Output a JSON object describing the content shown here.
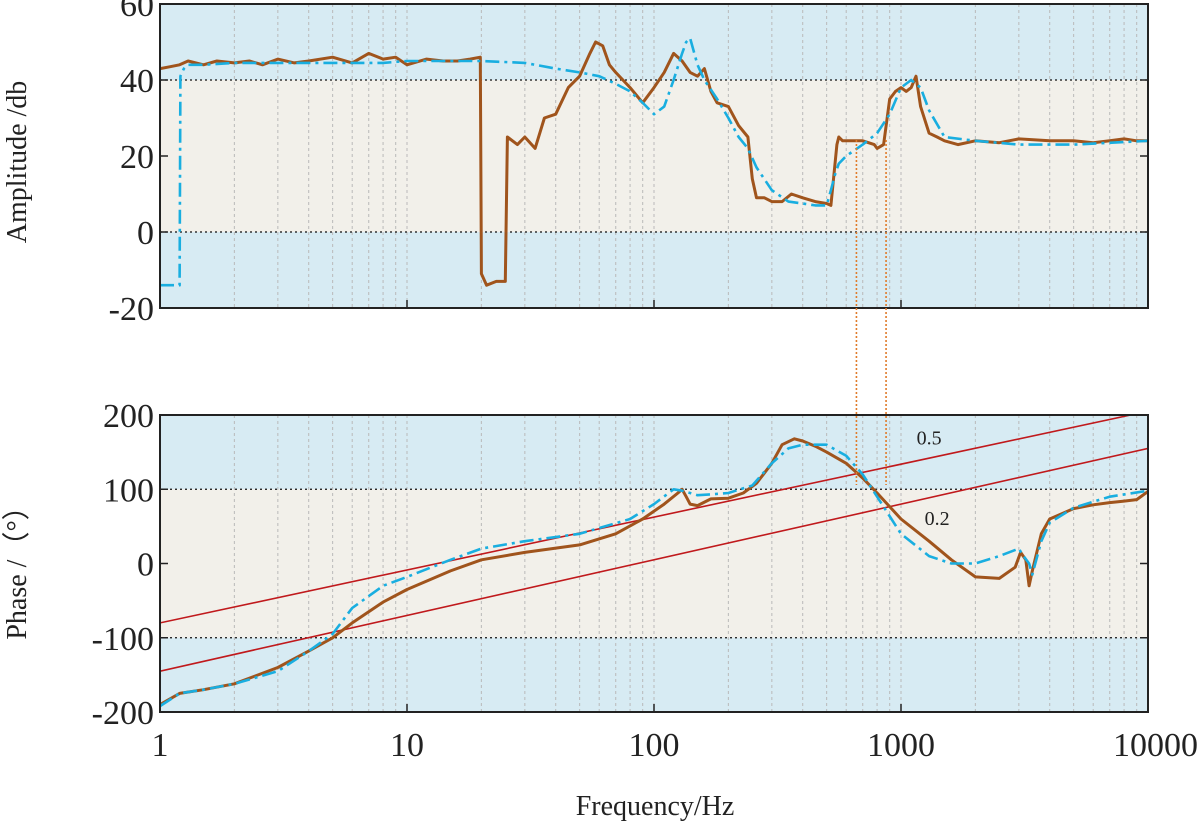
{
  "colors": {
    "band_blue": "#d7ebf3",
    "band_beige": "#f2f0ea",
    "measured": "#a0541c",
    "fitted": "#19aee0",
    "stability_line": "#c0191c",
    "guide": "#e07b2a"
  },
  "chart_data": [
    {
      "type": "line",
      "ylabel": "Amplitude /db",
      "xscale": "log",
      "xlim": [
        1,
        10000
      ],
      "ylim": [
        -20,
        60
      ],
      "ytick_labels": [
        "60",
        "40",
        "20",
        "0",
        "-20"
      ],
      "ytick_values": [
        60,
        40,
        20,
        0,
        -20
      ],
      "reference_lines": [
        40,
        0
      ],
      "series": [
        {
          "style": "solid",
          "color": "#a0541c",
          "x": [
            1,
            1.1,
            1.2,
            1.3,
            1.5,
            1.7,
            2,
            2.3,
            2.6,
            3,
            3.5,
            4,
            5,
            6,
            7,
            8,
            9,
            10,
            12,
            14,
            16,
            18,
            19.8,
            20,
            21,
            23,
            25,
            25.5,
            28,
            30,
            33,
            36,
            40,
            45,
            50,
            55,
            58,
            62,
            66,
            70,
            80,
            90,
            100,
            110,
            120,
            130,
            140,
            150,
            160,
            170,
            180,
            200,
            220,
            240,
            250,
            260,
            280,
            300,
            330,
            360,
            400,
            450,
            500,
            520,
            550,
            560,
            580,
            620,
            700,
            780,
            800,
            850,
            900,
            950,
            1000,
            1050,
            1100,
            1150,
            1200,
            1300,
            1400,
            1500,
            1700,
            2000,
            2500,
            3000,
            4000,
            5000,
            6000,
            7000,
            8000,
            9000,
            10000
          ],
          "y": [
            43,
            43.5,
            44,
            45,
            44,
            45,
            44.5,
            45,
            44,
            45.5,
            44.5,
            45,
            46,
            44.5,
            47,
            45.5,
            46,
            44,
            45.5,
            45,
            45,
            45.5,
            46,
            -11,
            -14,
            -13,
            -13,
            25,
            23,
            25,
            22,
            30,
            31,
            38,
            41,
            47,
            50,
            49,
            44,
            42,
            38,
            34,
            38,
            42,
            47,
            45,
            42,
            41,
            43,
            37,
            34,
            33,
            28,
            25,
            14,
            9,
            9,
            8,
            8,
            10,
            9,
            8,
            7.5,
            7,
            23,
            25,
            24,
            24,
            24,
            23,
            22,
            23,
            35,
            37,
            38,
            37,
            38,
            41,
            33,
            26,
            25,
            24,
            23,
            24,
            23.5,
            24.5,
            24,
            24,
            23.5,
            24,
            24.5,
            24,
            24
          ]
        },
        {
          "style": "dash-dot",
          "color": "#19aee0",
          "x": [
            1,
            1.15,
            1.2,
            1.21,
            1.25,
            1.3,
            1.5,
            2,
            3,
            5,
            8,
            10,
            15,
            20,
            30,
            40,
            50,
            60,
            70,
            80,
            90,
            100,
            110,
            120,
            130,
            135,
            140,
            150,
            160,
            180,
            200,
            220,
            240,
            260,
            300,
            350,
            400,
            450,
            500,
            520,
            540,
            560,
            600,
            700,
            800,
            900,
            1000,
            1100,
            1200,
            1300,
            1500,
            2000,
            3000,
            5000,
            10000
          ],
          "y": [
            -14,
            -14,
            -14,
            41,
            43,
            44,
            44,
            44.5,
            44.5,
            44.5,
            44.5,
            45,
            45,
            45,
            44.5,
            43,
            42,
            41,
            39,
            37,
            34,
            31,
            33,
            40,
            47,
            50,
            51,
            44,
            40,
            35,
            30,
            25,
            22,
            17,
            11,
            8,
            7.5,
            7,
            7,
            11,
            15,
            18,
            20,
            23,
            26,
            31,
            38,
            40,
            38,
            32,
            25,
            24,
            23,
            23,
            24
          ]
        }
      ]
    },
    {
      "type": "line",
      "xlabel": "Frequency/Hz",
      "ylabel": "Phase /（°）",
      "xscale": "log",
      "xlim": [
        1,
        10000
      ],
      "ylim": [
        -200,
        200
      ],
      "xtick_labels": [
        "1",
        "10",
        "100",
        "1000",
        "10000"
      ],
      "xtick_values": [
        1,
        10,
        100,
        1000,
        10000
      ],
      "ytick_labels": [
        "200",
        "100",
        "0",
        "-100",
        "-200"
      ],
      "ytick_values": [
        200,
        100,
        0,
        -100,
        -200
      ],
      "reference_lines": [
        100,
        -100
      ],
      "annotations": [
        {
          "text": "0.5",
          "x": 1300,
          "y": 160
        },
        {
          "text": "0.2",
          "x": 1400,
          "y": 52
        }
      ],
      "stability_lines": [
        {
          "label": "0.5",
          "x": [
            1,
            8500
          ],
          "y": [
            -80,
            200
          ]
        },
        {
          "label": "0.2",
          "x": [
            1,
            10000
          ],
          "y": [
            -145,
            155
          ]
        }
      ],
      "series": [
        {
          "style": "solid",
          "color": "#a0541c",
          "x": [
            1,
            1.2,
            1.5,
            2,
            3,
            4,
            5,
            6,
            8,
            10,
            15,
            20,
            30,
            50,
            70,
            90,
            110,
            125,
            130,
            135,
            140,
            150,
            170,
            200,
            230,
            260,
            300,
            330,
            370,
            400,
            450,
            500,
            600,
            700,
            800,
            1000,
            1300,
            1600,
            2000,
            2500,
            2900,
            3050,
            3200,
            3300,
            3400,
            3700,
            4000,
            5000,
            6000,
            7000,
            8000,
            9000,
            10000
          ],
          "y": [
            -190,
            -175,
            -170,
            -162,
            -140,
            -118,
            -100,
            -80,
            -52,
            -35,
            -10,
            5,
            15,
            25,
            40,
            60,
            80,
            95,
            100,
            90,
            80,
            78,
            87,
            88,
            95,
            108,
            135,
            160,
            168,
            165,
            158,
            150,
            135,
            115,
            95,
            60,
            30,
            5,
            -18,
            -20,
            -5,
            15,
            5,
            -30,
            -10,
            40,
            60,
            74,
            79,
            82,
            84,
            86,
            97
          ]
        },
        {
          "style": "dash-dot",
          "color": "#19aee0",
          "x": [
            1,
            1.2,
            1.5,
            2,
            3,
            4,
            5,
            6,
            8,
            10,
            15,
            20,
            30,
            50,
            80,
            100,
            120,
            130,
            140,
            150,
            170,
            200,
            250,
            300,
            350,
            400,
            450,
            500,
            600,
            700,
            800,
            1000,
            1300,
            1600,
            2000,
            2500,
            3000,
            3100,
            3300,
            3400,
            3700,
            4000,
            5000,
            7000,
            10000
          ],
          "y": [
            -192,
            -175,
            -170,
            -162,
            -145,
            -118,
            -95,
            -60,
            -30,
            -18,
            5,
            20,
            30,
            40,
            60,
            80,
            100,
            98,
            95,
            92,
            93,
            95,
            105,
            135,
            155,
            160,
            160,
            160,
            145,
            120,
            90,
            40,
            10,
            0,
            0,
            10,
            20,
            12,
            0,
            -15,
            30,
            55,
            75,
            90,
            98
          ]
        }
      ]
    }
  ]
}
